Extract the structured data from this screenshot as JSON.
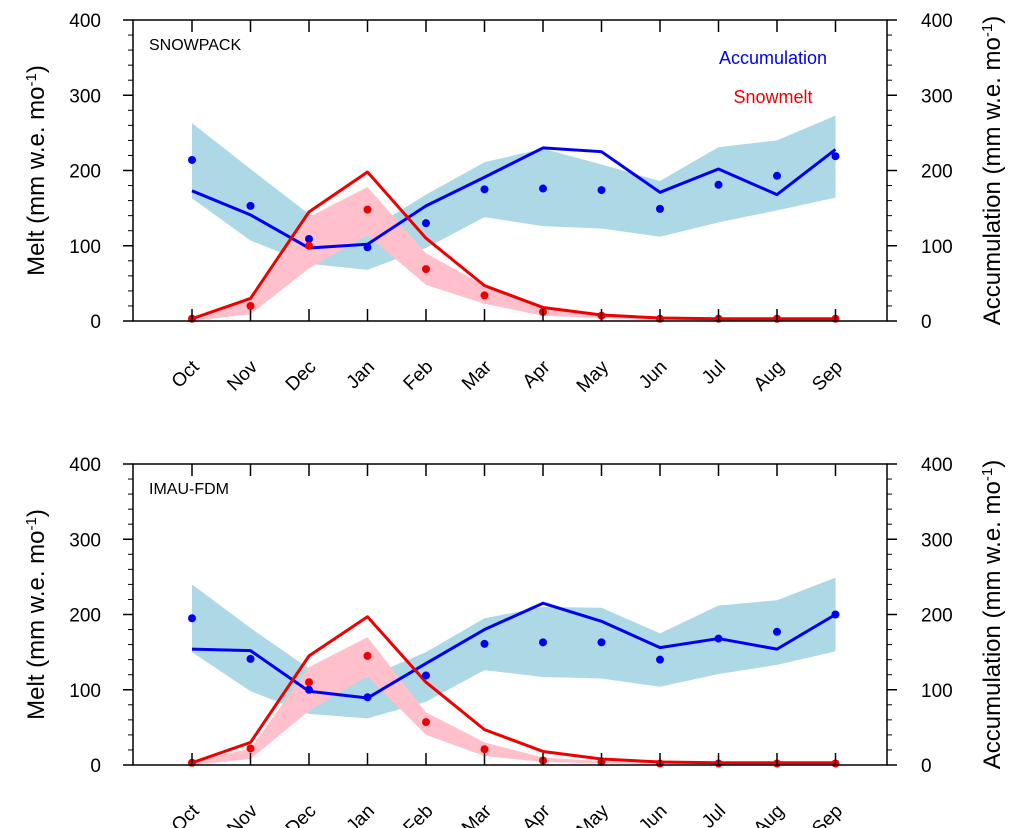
{
  "colors": {
    "accumulation": "#0000ee",
    "snowmelt": "#ee0000",
    "accumulation_band": "#add8e6",
    "snowmelt_band": "#ffc0cb"
  },
  "chart_data": [
    {
      "type": "line",
      "panel_label": "SNOWPACK",
      "categories": [
        "Oct",
        "Nov",
        "Dec",
        "Jan",
        "Feb",
        "Mar",
        "Apr",
        "May",
        "Jun",
        "Jul",
        "Aug",
        "Sep"
      ],
      "ylabel_left": "Melt (mm w.e.  mo",
      "ylabel_right": "Accumulation (mm w.e. mo",
      "ylabel_superscript": "-1",
      "ylim": [
        0,
        400
      ],
      "yticks": [
        0,
        100,
        200,
        300,
        400
      ],
      "legend": [
        "Accumulation",
        "Snowmelt"
      ],
      "legend_position": "top-right",
      "series": [
        {
          "name": "Accumulation",
          "kind": "line",
          "values": [
            173,
            141,
            97,
            102,
            153,
            191,
            230,
            225,
            171,
            202,
            168,
            228
          ]
        },
        {
          "name": "Accumulation",
          "kind": "points",
          "values": [
            214,
            153,
            109,
            98,
            130,
            175,
            176,
            174,
            149,
            181,
            193,
            219
          ]
        },
        {
          "name": "Accumulation",
          "kind": "band",
          "lower": [
            163,
            107,
            76,
            68,
            97,
            138,
            126,
            123,
            112,
            131,
            147,
            164
          ],
          "upper": [
            263,
            202,
            142,
            120,
            168,
            211,
            229,
            208,
            186,
            231,
            240,
            273
          ]
        },
        {
          "name": "Snowmelt",
          "kind": "line",
          "values": [
            3,
            30,
            145,
            198,
            110,
            47,
            18,
            8,
            4,
            3,
            3,
            3
          ]
        },
        {
          "name": "Snowmelt",
          "kind": "points",
          "values": [
            3,
            20,
            100,
            148,
            69,
            34,
            12,
            7,
            3,
            3,
            3,
            3
          ]
        },
        {
          "name": "Snowmelt",
          "kind": "band",
          "lower": [
            0,
            9,
            70,
            114,
            48,
            23,
            7,
            4,
            1,
            1,
            1,
            1
          ],
          "upper": [
            5,
            27,
            138,
            178,
            90,
            47,
            17,
            9,
            3,
            3,
            3,
            3
          ]
        }
      ]
    },
    {
      "type": "line",
      "panel_label": "IMAU-FDM",
      "categories": [
        "Oct",
        "Nov",
        "Dec",
        "Jan",
        "Feb",
        "Mar",
        "Apr",
        "May",
        "Jun",
        "Jul",
        "Aug",
        "Sep"
      ],
      "ylabel_left": "Melt (mm w.e.  mo",
      "ylabel_right": "Accumulation (mm w.e. mo",
      "ylabel_superscript": "-1",
      "ylim": [
        0,
        400
      ],
      "yticks": [
        0,
        100,
        200,
        300,
        400
      ],
      "series": [
        {
          "name": "Accumulation",
          "kind": "line",
          "values": [
            154,
            152,
            98,
            89,
            135,
            180,
            215,
            191,
            156,
            168,
            154,
            200
          ]
        },
        {
          "name": "Accumulation",
          "kind": "points",
          "values": [
            195,
            141,
            100,
            90,
            119,
            161,
            163,
            163,
            140,
            168,
            177,
            200
          ]
        },
        {
          "name": "Accumulation",
          "kind": "band",
          "lower": [
            150,
            98,
            68,
            62,
            84,
            126,
            117,
            115,
            104,
            121,
            133,
            151
          ],
          "upper": [
            240,
            182,
            128,
            117,
            150,
            195,
            210,
            209,
            175,
            212,
            219,
            249
          ]
        },
        {
          "name": "Snowmelt",
          "kind": "line",
          "values": [
            3,
            30,
            145,
            197,
            110,
            47,
            18,
            8,
            4,
            3,
            3,
            3
          ]
        },
        {
          "name": "Snowmelt",
          "kind": "points",
          "values": [
            3,
            22,
            110,
            145,
            57,
            21,
            6,
            4,
            2,
            2,
            2,
            2
          ]
        },
        {
          "name": "Snowmelt",
          "kind": "band",
          "lower": [
            0,
            8,
            72,
            118,
            40,
            12,
            4,
            2,
            1,
            1,
            1,
            1
          ],
          "upper": [
            5,
            22,
            130,
            170,
            70,
            30,
            10,
            5,
            3,
            3,
            3,
            3
          ]
        }
      ]
    }
  ]
}
